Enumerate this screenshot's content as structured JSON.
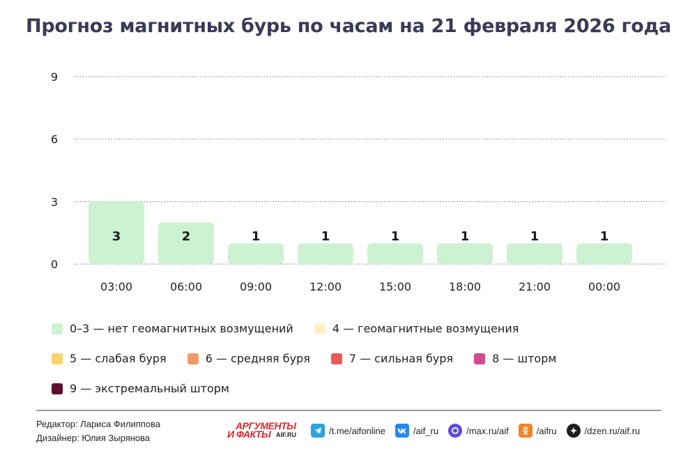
{
  "title": "Прогноз магнитных бурь по часам на 21 февраля 2026 года",
  "chart_data": {
    "type": "bar",
    "title": "Прогноз магнитных бурь по часам на 21 февраля 2026 года",
    "categories": [
      "03:00",
      "06:00",
      "09:00",
      "12:00",
      "15:00",
      "18:00",
      "21:00",
      "00:00"
    ],
    "values": [
      3,
      2,
      1,
      1,
      1,
      1,
      1,
      1
    ],
    "data_labels": [
      "3",
      "2",
      "1",
      "1",
      "1",
      "1",
      "1",
      "1"
    ],
    "y_ticks": [
      "0",
      "3",
      "6",
      "9"
    ],
    "ylim": [
      0,
      9
    ],
    "grid": true,
    "grid_style": "dotted",
    "bar_color": "#cdf2d1",
    "legend_placement": "bottom"
  },
  "legend": [
    [
      {
        "label": "0–3 — нет геомагнитных возмущений",
        "color": "#cdf2d1"
      },
      {
        "label": "4 — геомагнитные возмущения",
        "color": "#fdf0c8"
      }
    ],
    [
      {
        "label": "5 — слабая буря",
        "color": "#f9d46b"
      },
      {
        "label": "6 — средняя буря",
        "color": "#f49a6a"
      },
      {
        "label": "7 — сильная буря",
        "color": "#ec5a55"
      },
      {
        "label": "8 — шторм",
        "color": "#cc4e8c"
      }
    ],
    [
      {
        "label": "9 — экстремальный шторм",
        "color": "#5e0d2e"
      }
    ]
  ],
  "footer": {
    "editor": "Редактор: Лариса Филиппова",
    "designer": "Дизайнер: Юлия Зырянова",
    "brand_top": "АРГУМЕНТЫ",
    "brand_bottom": "И ФАКТЫ",
    "brand_site": "AIF.RU",
    "socials": [
      {
        "icon": "telegram-icon",
        "text": "/t.me/aifonline",
        "color": "#2aa3db"
      },
      {
        "icon": "vk-icon",
        "text": "/aif_ru",
        "color": "#2787f5"
      },
      {
        "icon": "max-icon",
        "text": "/max.ru/aif",
        "color": "#5b4bd8"
      },
      {
        "icon": "odnoklassniki-icon",
        "text": "/aifru",
        "color": "#f0852a"
      },
      {
        "icon": "dzen-icon",
        "text": "/dzen.ru/aif.ru",
        "color": "#1c1c1c"
      }
    ]
  }
}
